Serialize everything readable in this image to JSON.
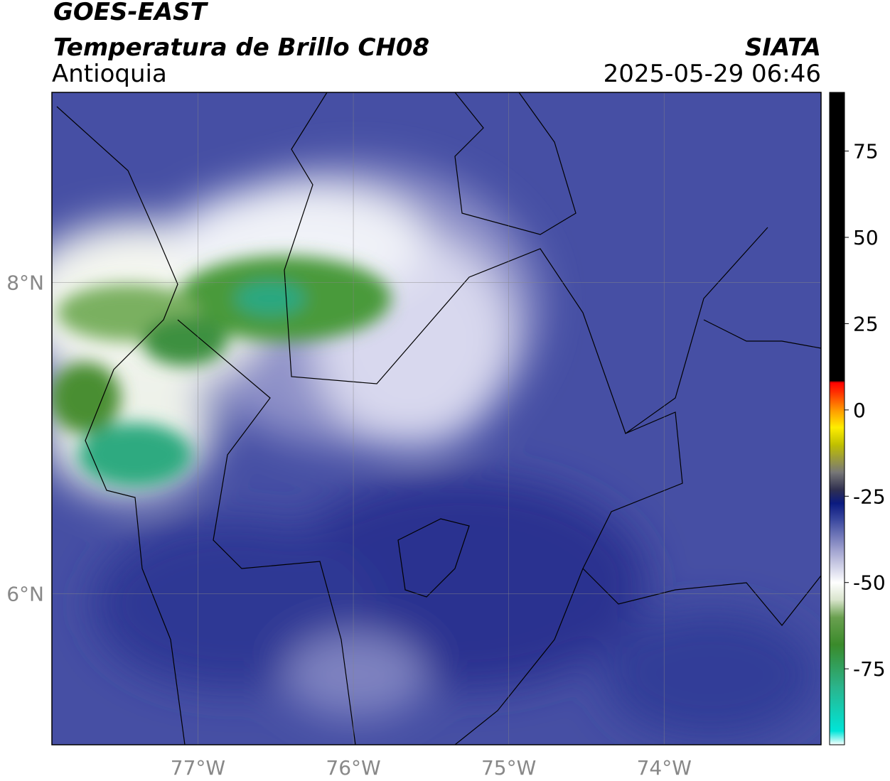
{
  "chart_data": {
    "type": "map",
    "title": "GOES-EAST",
    "subtitle": "Temperatura de Brillo CH08",
    "region": "Antioquia",
    "source": "SIATA",
    "datetime": "2025-05-29 06:46",
    "xlim": [
      -77.94,
      -72.99
    ],
    "ylim": [
      5.03,
      9.22
    ],
    "xticks": [
      {
        "value": -77,
        "label": "77°W"
      },
      {
        "value": -76,
        "label": "76°W"
      },
      {
        "value": -75,
        "label": "75°W"
      },
      {
        "value": -74,
        "label": "74°W"
      }
    ],
    "yticks": [
      {
        "value": 6,
        "label": "6°N"
      },
      {
        "value": 8,
        "label": "8°N"
      }
    ],
    "grid": true,
    "colorbar": {
      "lim": [
        -97,
        92
      ],
      "ticks": [
        -75,
        -50,
        -25,
        0,
        25,
        50,
        75
      ],
      "stops": [
        {
          "value": -97,
          "color": "#ffffff"
        },
        {
          "value": -93,
          "color": "#00e5d8"
        },
        {
          "value": -80,
          "color": "#2bb38a"
        },
        {
          "value": -68,
          "color": "#3a8a2a"
        },
        {
          "value": -60,
          "color": "#6aa050"
        },
        {
          "value": -55,
          "color": "#d8e4cc"
        },
        {
          "value": -50,
          "color": "#ffffff"
        },
        {
          "value": -40,
          "color": "#9a9ccc"
        },
        {
          "value": -32,
          "color": "#3d4aa0"
        },
        {
          "value": -27,
          "color": "#0a1a80"
        },
        {
          "value": -23,
          "color": "#303050"
        },
        {
          "value": -18,
          "color": "#777777"
        },
        {
          "value": -10,
          "color": "#c0c000"
        },
        {
          "value": -5,
          "color": "#ffee00"
        },
        {
          "value": 0,
          "color": "#ff9900"
        },
        {
          "value": 5,
          "color": "#ff3300"
        },
        {
          "value": 8,
          "color": "#ff0000"
        },
        {
          "value": 8.5,
          "color": "#000000"
        },
        {
          "value": 92,
          "color": "#000000"
        }
      ]
    }
  }
}
